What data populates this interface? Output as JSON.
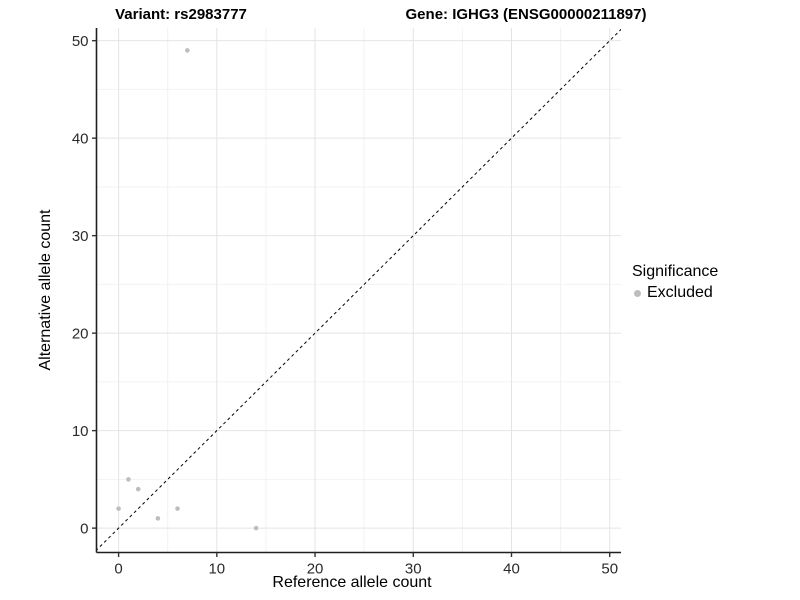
{
  "chart_data": {
    "type": "scatter",
    "title_left": "Variant: rs2983777",
    "title_right": "Gene: IGHG3 (ENSG00000211897)",
    "xlabel": "Reference allele count",
    "ylabel": "Alternative allele count",
    "xlim": [
      -2.25,
      51.15
    ],
    "ylim": [
      -2.5,
      51.3
    ],
    "x_ticks": [
      0,
      10,
      20,
      30,
      40,
      50
    ],
    "y_ticks": [
      0,
      10,
      20,
      30,
      40,
      50
    ],
    "x_minor_ticks": [
      5,
      15,
      25,
      35,
      45
    ],
    "y_minor_ticks": [
      5,
      15,
      25,
      35,
      45
    ],
    "grid": true,
    "identity_line": {
      "slope": 1,
      "intercept": 0,
      "style": "dashed",
      "color": "#000000"
    },
    "series": [
      {
        "name": "Excluded",
        "color": "#bdbdbd",
        "points": [
          [
            0,
            2
          ],
          [
            1,
            5
          ],
          [
            2,
            4
          ],
          [
            4,
            1
          ],
          [
            6,
            2
          ],
          [
            7,
            49
          ],
          [
            14,
            0
          ]
        ]
      }
    ],
    "legend": {
      "title": "Significance",
      "position": "right",
      "entries": [
        {
          "label": "Excluded",
          "color": "#bdbdbd"
        }
      ]
    },
    "colors": {
      "grid_major": "#e4e4e4",
      "grid_minor": "#f2f2f2",
      "axis_line": "#1f1f1f",
      "tick_mark": "#333333",
      "tick_label": "#2b2b2b",
      "background": "#ffffff"
    }
  }
}
